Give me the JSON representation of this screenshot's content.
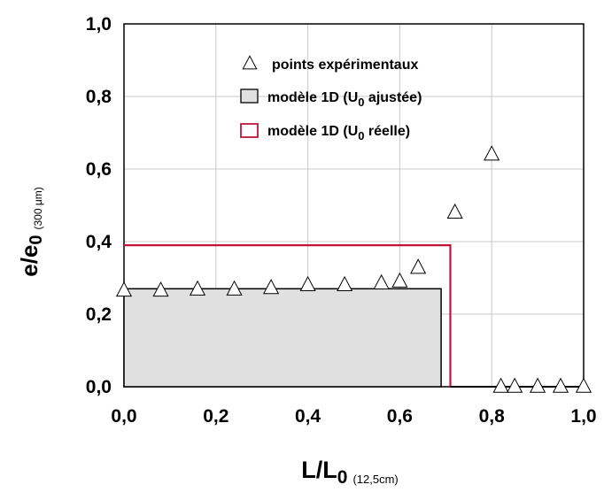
{
  "chart_data": {
    "type": "scatter",
    "xlabel": {
      "main": "L/L",
      "sub": "0",
      "unit": "(12,5cm)"
    },
    "ylabel": {
      "main": "e/e",
      "sub": "0",
      "unit": "(300 μm)"
    },
    "xlim": [
      0,
      1
    ],
    "ylim": [
      0,
      1
    ],
    "x_ticks": [
      0,
      0.2,
      0.4,
      0.6,
      0.8,
      1.0
    ],
    "y_ticks": [
      0,
      0.2,
      0.4,
      0.6,
      0.8,
      1.0
    ],
    "x_tick_labels": [
      "0,0",
      "0,2",
      "0,4",
      "0,6",
      "0,8",
      "1,0"
    ],
    "y_tick_labels": [
      "0,0",
      "0,2",
      "0,4",
      "0,6",
      "0,8",
      "1,0"
    ],
    "grid": true,
    "legend_position": "top-right",
    "series": [
      {
        "name": "points expérimentaux",
        "style": "open-triangle",
        "x": [
          0.0,
          0.08,
          0.16,
          0.24,
          0.32,
          0.4,
          0.48,
          0.56,
          0.6,
          0.64,
          0.72,
          0.8,
          0.82,
          0.85,
          0.9,
          0.95,
          1.0
        ],
        "y": [
          0.265,
          0.265,
          0.268,
          0.268,
          0.272,
          0.28,
          0.28,
          0.285,
          0.29,
          0.328,
          0.48,
          0.64,
          0.0,
          0.0,
          0.0,
          0.0,
          0.0
        ]
      },
      {
        "name": "modèle 1D (U0 ajustée)",
        "legend_parts": {
          "before": "modèle 1D (U",
          "sub": "0",
          "after": " ajustée)"
        },
        "style": "filled-step",
        "fill": "#e0e0e0",
        "stroke": "#000000",
        "x": [
          0,
          0.69
        ],
        "y": [
          0.27,
          0.27
        ]
      },
      {
        "name": "modèle 1D (U0 réelle)",
        "legend_parts": {
          "before": "modèle 1D (U",
          "sub": "0",
          "after": " réelle)"
        },
        "style": "step-line",
        "stroke": "#c0143c",
        "x": [
          0,
          0.71
        ],
        "y": [
          0.39,
          0.39
        ]
      }
    ],
    "baseline_segment": {
      "x": [
        0.71,
        1.0
      ],
      "y": 0
    }
  }
}
